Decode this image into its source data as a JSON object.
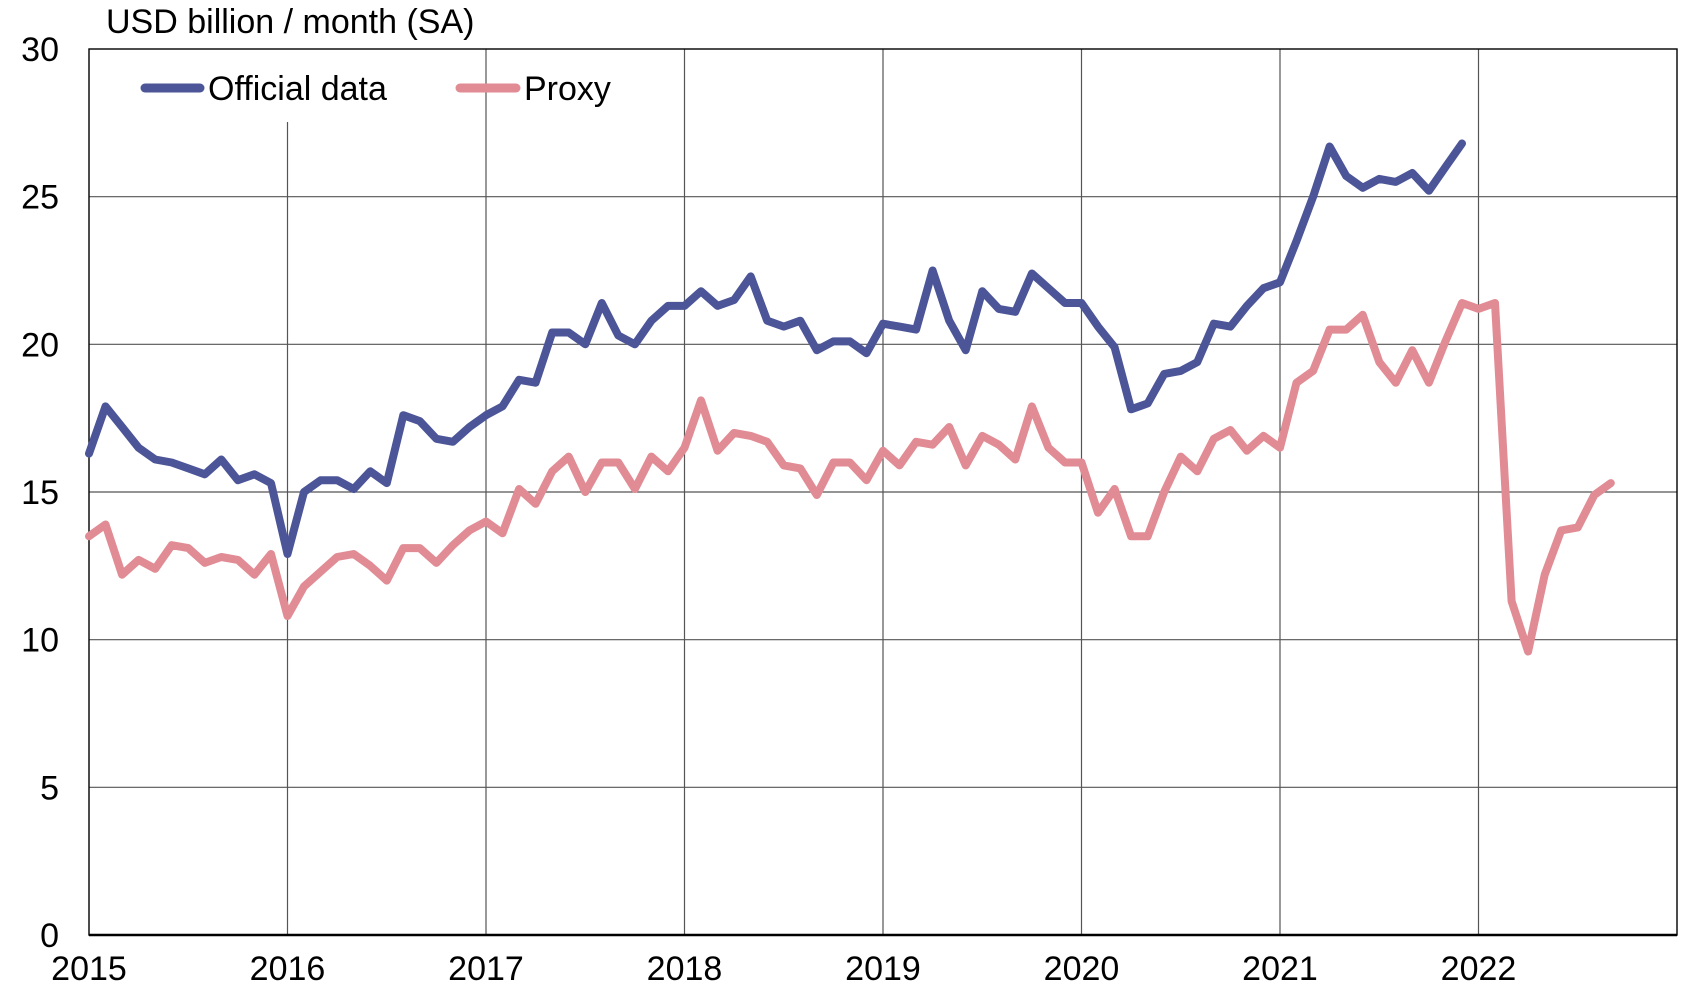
{
  "chart_data": {
    "type": "line",
    "title": "",
    "ylabel": "USD billion / month (SA)",
    "xlabel": "",
    "xlim": [
      "2015-01",
      "2023-01"
    ],
    "ylim": [
      0,
      30
    ],
    "y_ticks": [
      0,
      5,
      10,
      15,
      20,
      25,
      30
    ],
    "x_ticks": [
      "2015",
      "2016",
      "2017",
      "2018",
      "2019",
      "2020",
      "2021",
      "2022"
    ],
    "grid": true,
    "legend": {
      "placement": "top-left",
      "orientation": "horizontal"
    },
    "series": [
      {
        "name": "Official data",
        "color": "#4b5597",
        "start": "2015-01",
        "values": [
          16.3,
          17.9,
          17.2,
          16.5,
          16.1,
          16.0,
          15.8,
          15.6,
          16.1,
          15.4,
          15.6,
          15.3,
          12.9,
          15.0,
          15.4,
          15.4,
          15.1,
          15.7,
          15.3,
          17.6,
          17.4,
          16.8,
          16.7,
          17.2,
          17.6,
          17.9,
          18.8,
          18.7,
          20.4,
          20.4,
          20.0,
          21.4,
          20.3,
          20.0,
          20.8,
          21.3,
          21.3,
          21.8,
          21.3,
          21.5,
          22.3,
          20.8,
          20.6,
          20.8,
          19.8,
          20.1,
          20.1,
          19.7,
          20.7,
          20.6,
          20.5,
          22.5,
          20.8,
          19.8,
          21.8,
          21.2,
          21.1,
          22.4,
          21.9,
          21.4,
          21.4,
          20.6,
          19.9,
          17.8,
          18.0,
          19.0,
          19.1,
          19.4,
          20.7,
          20.6,
          21.3,
          21.9,
          22.1,
          23.5,
          25.0,
          26.7,
          25.7,
          25.3,
          25.6,
          25.5,
          25.8,
          25.2,
          26.0,
          26.8
        ]
      },
      {
        "name": "Proxy",
        "color": "#e18b94",
        "start": "2015-01",
        "values": [
          13.5,
          13.9,
          12.2,
          12.7,
          12.4,
          13.2,
          13.1,
          12.6,
          12.8,
          12.7,
          12.2,
          12.9,
          10.8,
          11.8,
          12.3,
          12.8,
          12.9,
          12.5,
          12.0,
          13.1,
          13.1,
          12.6,
          13.2,
          13.7,
          14.0,
          13.6,
          15.1,
          14.6,
          15.7,
          16.2,
          15.0,
          16.0,
          16.0,
          15.1,
          16.2,
          15.7,
          16.5,
          18.1,
          16.4,
          17.0,
          16.9,
          16.7,
          15.9,
          15.8,
          14.9,
          16.0,
          16.0,
          15.4,
          16.4,
          15.9,
          16.7,
          16.6,
          17.2,
          15.9,
          16.9,
          16.6,
          16.1,
          17.9,
          16.5,
          16.0,
          16.0,
          14.3,
          15.1,
          13.5,
          13.5,
          15.0,
          16.2,
          15.7,
          16.8,
          17.1,
          16.4,
          16.9,
          16.5,
          18.7,
          19.1,
          20.5,
          20.5,
          21.0,
          19.4,
          18.7,
          19.8,
          18.7,
          20.1,
          21.4,
          21.2,
          21.4,
          11.3,
          9.6,
          12.2,
          13.7,
          13.8,
          14.9,
          15.3
        ]
      }
    ]
  }
}
